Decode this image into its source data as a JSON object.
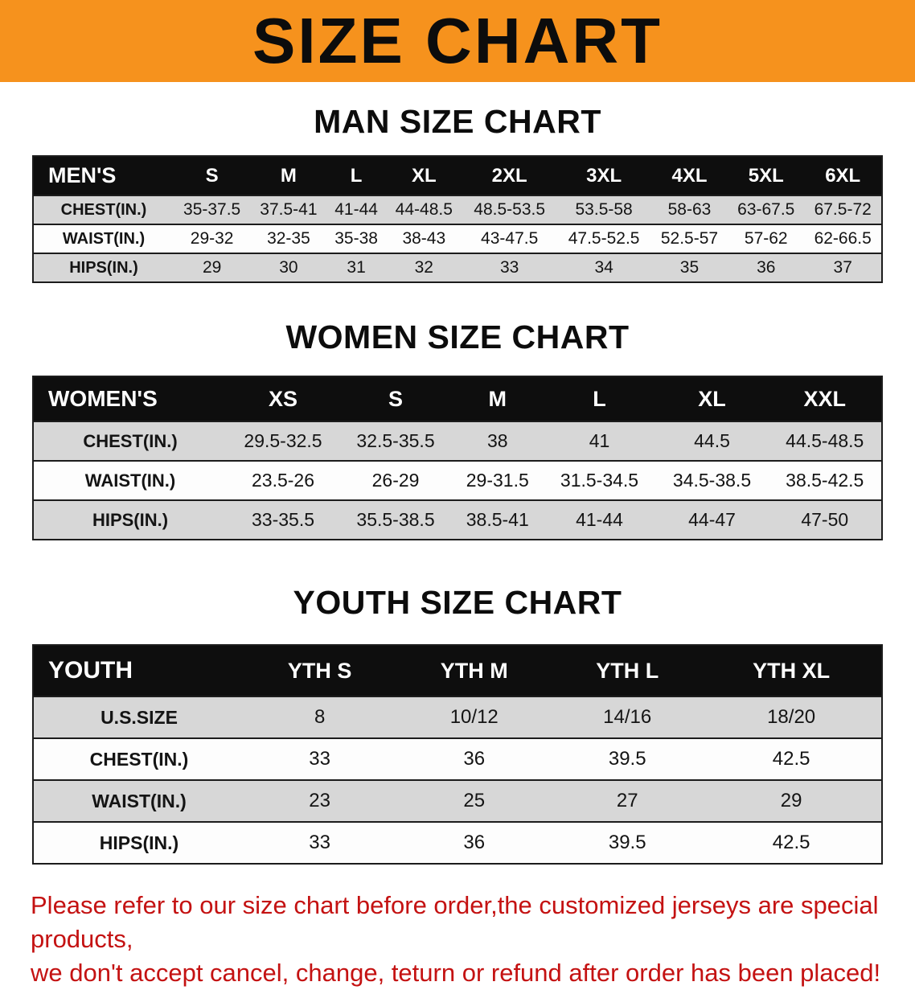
{
  "banner": {
    "title": "SIZE CHART"
  },
  "sections": [
    {
      "heading": "MAN SIZE CHART",
      "table": {
        "header": [
          "MEN'S",
          "S",
          "M",
          "L",
          "XL",
          "2XL",
          "3XL",
          "4XL",
          "5XL",
          "6XL"
        ],
        "rows": [
          [
            "CHEST(IN.)",
            "35-37.5",
            "37.5-41",
            "41-44",
            "44-48.5",
            "48.5-53.5",
            "53.5-58",
            "58-63",
            "63-67.5",
            "67.5-72"
          ],
          [
            "WAIST(IN.)",
            "29-32",
            "32-35",
            "35-38",
            "38-43",
            "43-47.5",
            "47.5-52.5",
            "52.5-57",
            "57-62",
            "62-66.5"
          ],
          [
            "HIPS(IN.)",
            "29",
            "30",
            "31",
            "32",
            "33",
            "34",
            "35",
            "36",
            "37"
          ]
        ]
      }
    },
    {
      "heading": "WOMEN SIZE CHART",
      "table": {
        "header": [
          "WOMEN'S",
          "XS",
          "S",
          "M",
          "L",
          "XL",
          "XXL"
        ],
        "rows": [
          [
            "CHEST(IN.)",
            "29.5-32.5",
            "32.5-35.5",
            "38",
            "41",
            "44.5",
            "44.5-48.5"
          ],
          [
            "WAIST(IN.)",
            "23.5-26",
            "26-29",
            "29-31.5",
            "31.5-34.5",
            "34.5-38.5",
            "38.5-42.5"
          ],
          [
            "HIPS(IN.)",
            "33-35.5",
            "35.5-38.5",
            "38.5-41",
            "41-44",
            "44-47",
            "47-50"
          ]
        ]
      }
    },
    {
      "heading": "YOUTH SIZE CHART",
      "table": {
        "header": [
          "YOUTH",
          "YTH S",
          "YTH M",
          "YTH L",
          "YTH XL"
        ],
        "rows": [
          [
            "U.S.SIZE",
            "8",
            "10/12",
            "14/16",
            "18/20"
          ],
          [
            "CHEST(IN.)",
            "33",
            "36",
            "39.5",
            "42.5"
          ],
          [
            "WAIST(IN.)",
            "23",
            "25",
            "27",
            "29"
          ],
          [
            "HIPS(IN.)",
            "33",
            "36",
            "39.5",
            "42.5"
          ]
        ]
      }
    }
  ],
  "footer": {
    "line1": "Please refer to our size chart before order,the customized jerseys are special products,",
    "line2": "we don't accept cancel, change, teturn or refund after order has been placed!"
  },
  "colors": {
    "banner_orange": "#f6921d",
    "table_header_black": "#0e0e0e",
    "row_gray": "#d7d7d7",
    "notice_red": "#c41212"
  }
}
